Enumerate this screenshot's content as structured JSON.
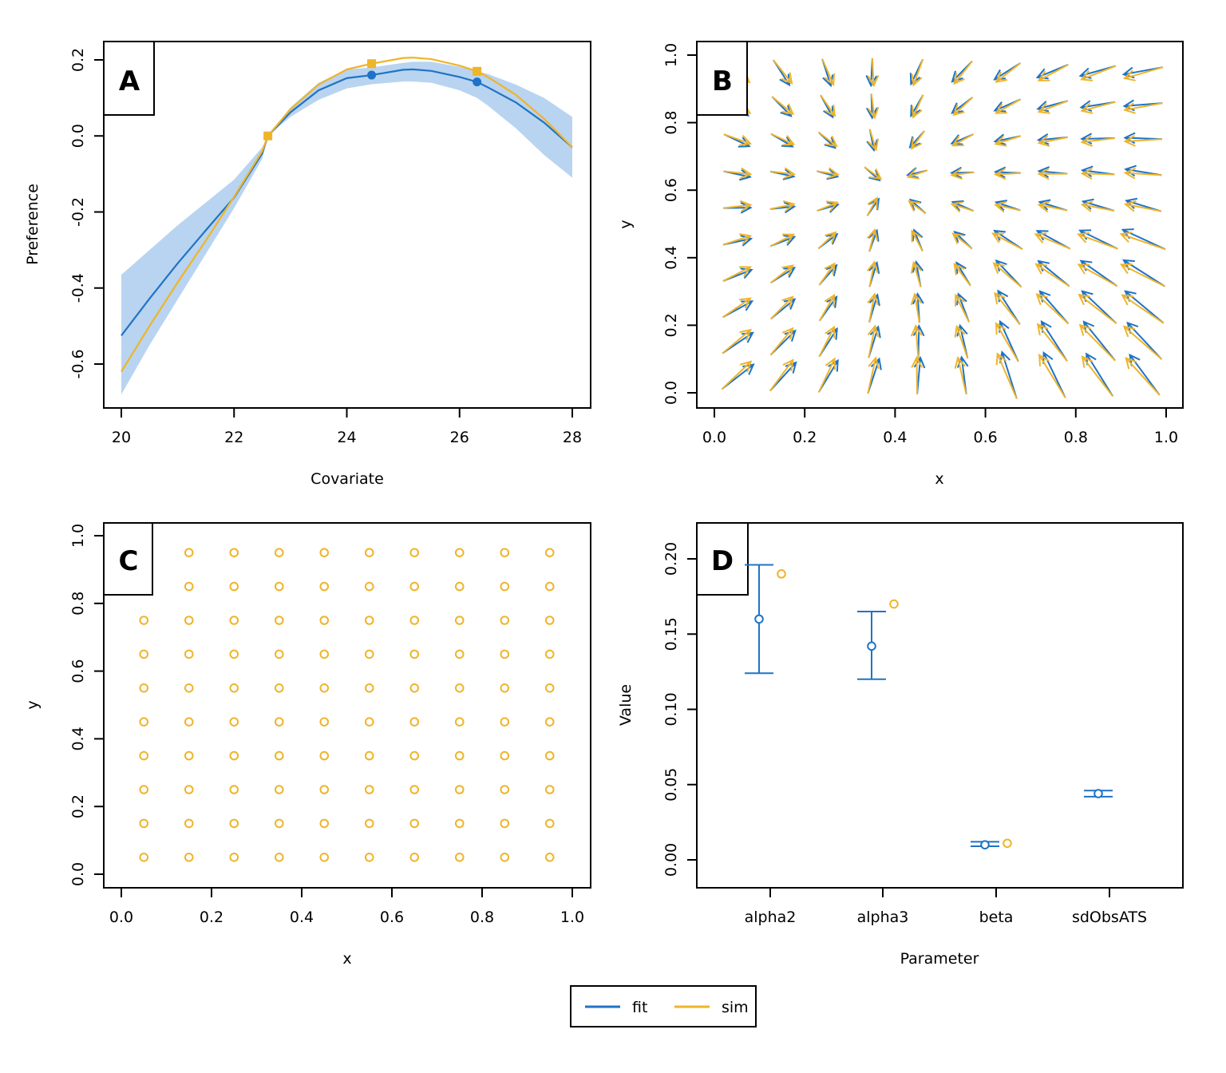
{
  "colors": {
    "fit": "#1f73c6",
    "sim": "#efb42a",
    "band": "#b9d4f0",
    "frame": "#000000"
  },
  "legend": {
    "entries": [
      {
        "label": "fit",
        "color": "#1f73c6"
      },
      {
        "label": "sim",
        "color": "#efb42a"
      }
    ]
  },
  "chart_data": [
    {
      "panel": "A",
      "type": "line",
      "xlabel": "Covariate",
      "ylabel": "Preference",
      "xlim": [
        20,
        28
      ],
      "ylim": [
        -0.7,
        0.22
      ],
      "xticks": [
        20,
        22,
        24,
        26,
        28
      ],
      "yticks": [
        -0.6,
        -0.4,
        -0.2,
        0.0,
        0.2
      ],
      "series": [
        {
          "name": "fit",
          "x": [
            20,
            20.5,
            21,
            21.5,
            22,
            22.5,
            22.6,
            23,
            23.5,
            24,
            24.44,
            25,
            25.17,
            25.5,
            26,
            26.31,
            26.5,
            27,
            27.5,
            28
          ],
          "y": [
            -0.525,
            -0.428,
            -0.335,
            -0.248,
            -0.162,
            -0.046,
            0.0,
            0.062,
            0.12,
            0.152,
            0.16,
            0.174,
            0.175,
            0.171,
            0.155,
            0.142,
            0.128,
            0.088,
            0.035,
            -0.03
          ],
          "band_lower": [
            -0.68,
            -0.55,
            -0.43,
            -0.31,
            -0.19,
            -0.06,
            0.0,
            0.05,
            0.095,
            0.125,
            0.136,
            0.143,
            0.143,
            0.14,
            0.12,
            0.1,
            0.08,
            0.02,
            -0.05,
            -0.11
          ],
          "band_upper": [
            -0.365,
            -0.3,
            -0.235,
            -0.175,
            -0.115,
            -0.03,
            0.0,
            0.075,
            0.14,
            0.175,
            0.18,
            0.192,
            0.195,
            0.195,
            0.182,
            0.17,
            0.163,
            0.135,
            0.1,
            0.05
          ],
          "points": [
            [
              24.44,
              0.16
            ],
            [
              26.31,
              0.142
            ]
          ]
        },
        {
          "name": "sim",
          "x": [
            20,
            20.5,
            21,
            21.5,
            22,
            22.5,
            22.6,
            23,
            23.5,
            24,
            24.44,
            25,
            25.17,
            25.5,
            26,
            26.31,
            26.5,
            27,
            27.5,
            28
          ],
          "y": [
            -0.62,
            -0.5,
            -0.385,
            -0.275,
            -0.16,
            -0.04,
            0.0,
            0.07,
            0.135,
            0.175,
            0.19,
            0.205,
            0.206,
            0.202,
            0.185,
            0.17,
            0.155,
            0.108,
            0.045,
            -0.03
          ],
          "points": [
            [
              22.6,
              0.0
            ],
            [
              24.44,
              0.19
            ],
            [
              26.31,
              0.17
            ]
          ]
        }
      ]
    },
    {
      "panel": "B",
      "type": "scatter",
      "xlabel": "x",
      "ylabel": "y",
      "xlim": [
        0.0,
        1.0
      ],
      "ylim": [
        0.0,
        1.0
      ],
      "xticks": [
        0.0,
        0.2,
        0.4,
        0.6,
        0.8,
        1.0
      ],
      "yticks": [
        0.0,
        0.2,
        0.4,
        0.6,
        0.8,
        1.0
      ],
      "grid_x": [
        0.05,
        0.15,
        0.25,
        0.35,
        0.45,
        0.55,
        0.65,
        0.75,
        0.85,
        0.95
      ],
      "grid_y": [
        0.05,
        0.15,
        0.25,
        0.35,
        0.45,
        0.55,
        0.65,
        0.75,
        0.85,
        0.95
      ],
      "arrow_field": "fit and sim velocity arrows on a 10 by 10 grid"
    },
    {
      "panel": "C",
      "type": "scatter",
      "xlabel": "x",
      "ylabel": "y",
      "xlim": [
        0.0,
        1.0
      ],
      "ylim": [
        0.0,
        1.0
      ],
      "xticks": [
        0.0,
        0.2,
        0.4,
        0.6,
        0.8,
        1.0
      ],
      "yticks": [
        0.0,
        0.2,
        0.4,
        0.6,
        0.8,
        1.0
      ],
      "grid_x": [
        0.05,
        0.15,
        0.25,
        0.35,
        0.45,
        0.55,
        0.65,
        0.75,
        0.85,
        0.95
      ],
      "grid_y": [
        0.05,
        0.15,
        0.25,
        0.35,
        0.45,
        0.55,
        0.65,
        0.75,
        0.85,
        0.95
      ],
      "missing": [
        [
          0.05,
          0.85
        ],
        [
          0.05,
          0.95
        ]
      ]
    },
    {
      "panel": "D",
      "type": "scatter",
      "xlabel": "Parameter",
      "ylabel": "Value",
      "categories": [
        "alpha2",
        "alpha3",
        "beta",
        "sdObsATS"
      ],
      "ylim": [
        -0.01,
        0.22
      ],
      "yticks": [
        0.0,
        0.05,
        0.1,
        0.15,
        0.2
      ],
      "series": [
        {
          "name": "fit",
          "values": [
            0.16,
            0.142,
            0.01,
            0.044
          ],
          "lower": [
            0.124,
            0.12,
            0.009,
            0.042
          ],
          "upper": [
            0.196,
            0.165,
            0.012,
            0.046
          ]
        },
        {
          "name": "sim",
          "values": [
            0.19,
            0.17,
            0.011,
            null
          ]
        }
      ]
    }
  ]
}
